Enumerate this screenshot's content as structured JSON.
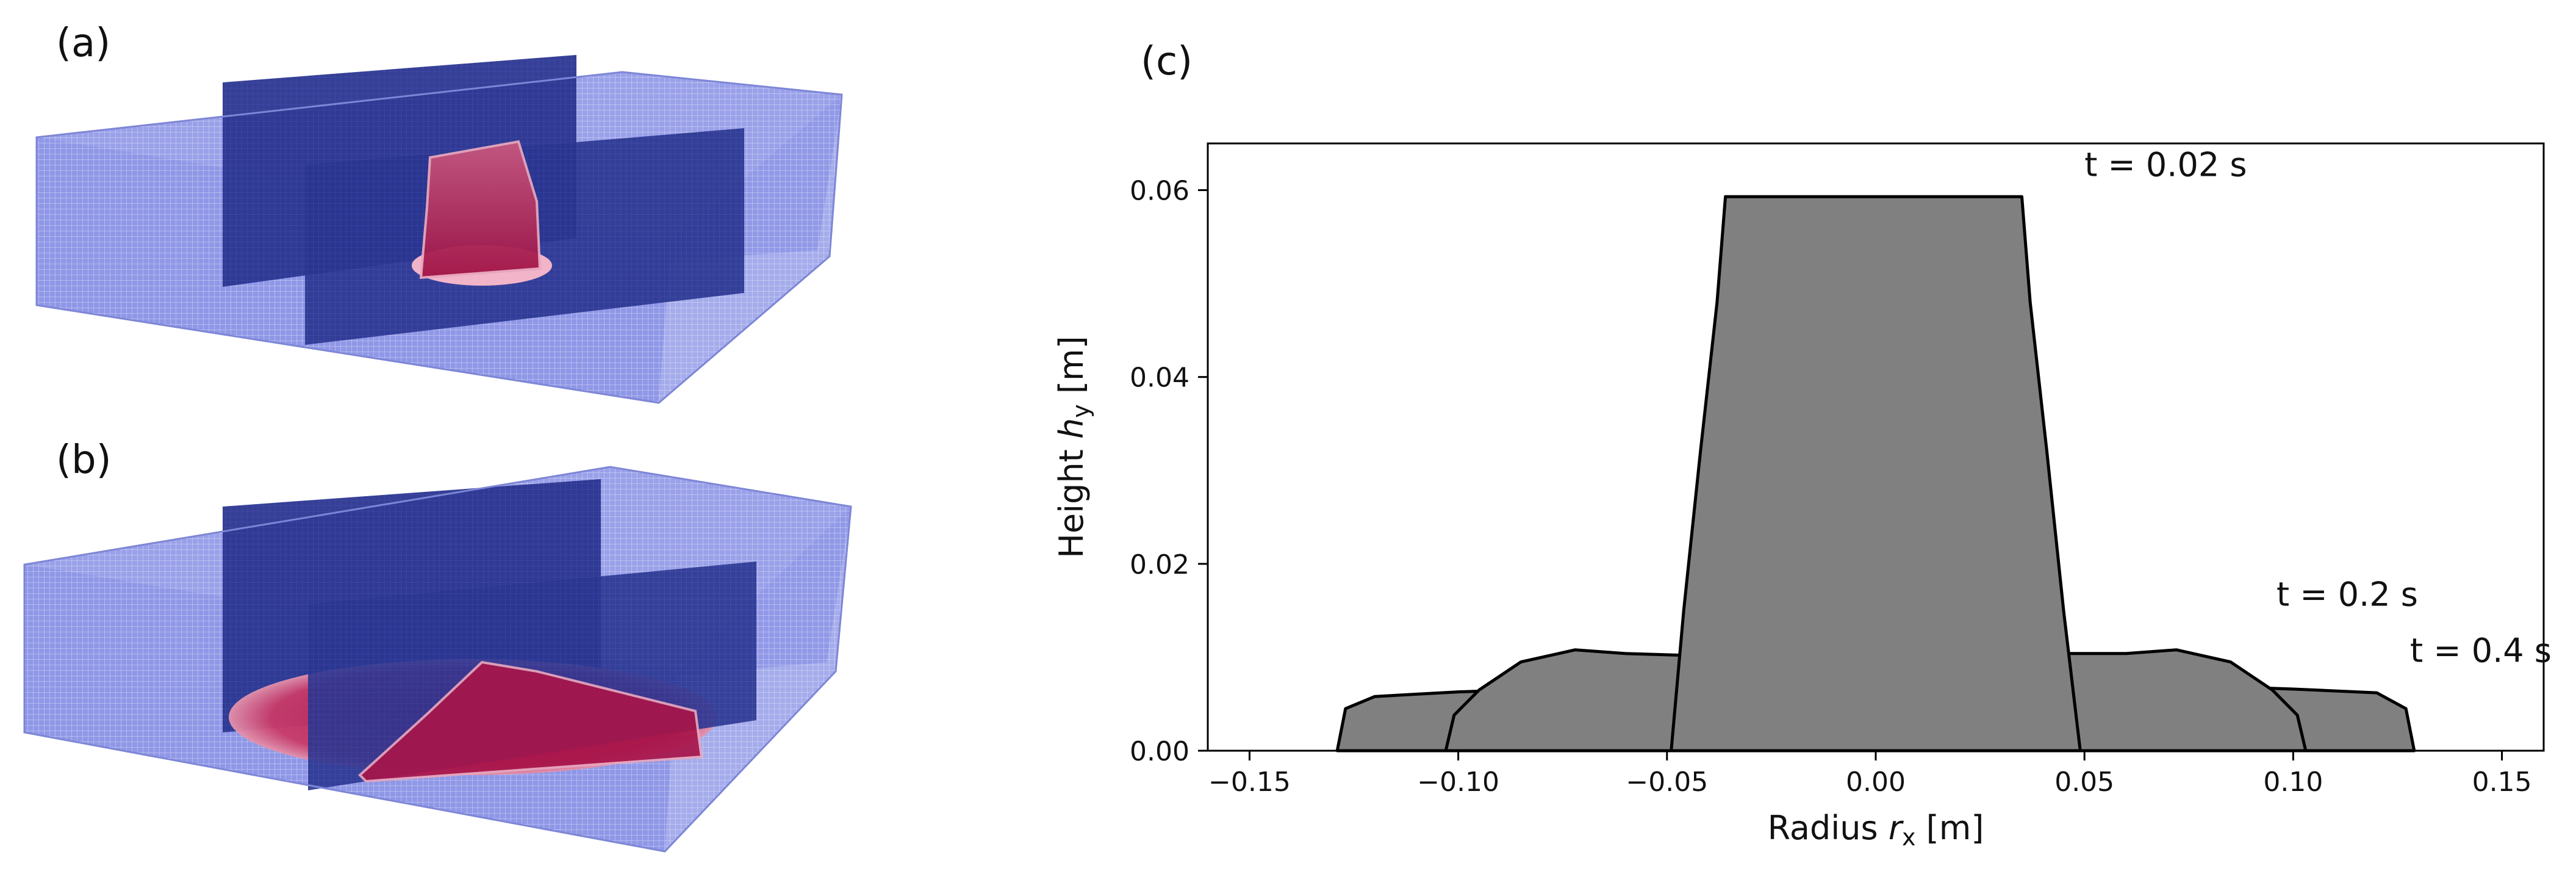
{
  "panels": {
    "a_label": "(a)",
    "b_label": "(b)",
    "c_label": "(c)"
  },
  "colors": {
    "domain_light": "#8f97e6",
    "domain_mid": "#5f69d6",
    "domain_dark": "#2a3590",
    "fluid": "#b02050",
    "fluid_light": "#f2b4c8",
    "profile_fill": "#808080",
    "profile_edge": "#000000"
  },
  "chart_data": {
    "type": "area",
    "title": "",
    "xlabel": "Radius r_x [m]",
    "xlabel_main": "Radius ",
    "xlabel_var": "r",
    "xlabel_sub": "x",
    "xlabel_unit": " [m]",
    "ylabel": "Height h_y [m]",
    "ylabel_main": "Height ",
    "ylabel_var": "h",
    "ylabel_sub": "y",
    "ylabel_unit": " [m]",
    "xlim": [
      -0.16,
      0.16
    ],
    "ylim": [
      0.0,
      0.065
    ],
    "xticks": [
      -0.15,
      -0.1,
      -0.05,
      0.0,
      0.05,
      0.1,
      0.15
    ],
    "xtick_labels": [
      "−0.15",
      "−0.10",
      "−0.05",
      "0.00",
      "0.05",
      "0.10",
      "0.15"
    ],
    "yticks": [
      0.0,
      0.02,
      0.04,
      0.06
    ],
    "ytick_labels": [
      "0.00",
      "0.02",
      "0.04",
      "0.06"
    ],
    "grid": false,
    "series": [
      {
        "name": "t = 0.4 s",
        "label_anchor": [
          0.128,
          0.0095
        ],
        "points": [
          [
            -0.129,
            0.0
          ],
          [
            -0.127,
            0.0045
          ],
          [
            -0.12,
            0.0058
          ],
          [
            -0.1,
            0.0063
          ],
          [
            -0.08,
            0.0066
          ],
          [
            -0.05,
            0.0072
          ],
          [
            -0.03,
            0.0082
          ],
          [
            -0.01,
            0.0095
          ],
          [
            0.0,
            0.0099
          ],
          [
            0.01,
            0.0097
          ],
          [
            0.03,
            0.0087
          ],
          [
            0.05,
            0.0075
          ],
          [
            0.08,
            0.0069
          ],
          [
            0.1,
            0.0066
          ],
          [
            0.12,
            0.0062
          ],
          [
            0.127,
            0.0045
          ],
          [
            0.129,
            0.0
          ]
        ]
      },
      {
        "name": "t = 0.2 s",
        "label_anchor": [
          0.096,
          0.0155
        ],
        "points": [
          [
            -0.103,
            0.0
          ],
          [
            -0.101,
            0.0038
          ],
          [
            -0.095,
            0.0065
          ],
          [
            -0.085,
            0.0095
          ],
          [
            -0.072,
            0.0108
          ],
          [
            -0.06,
            0.0104
          ],
          [
            -0.045,
            0.0102
          ],
          [
            -0.035,
            0.0117
          ],
          [
            -0.02,
            0.015
          ],
          [
            -0.005,
            0.017
          ],
          [
            0.0,
            0.0172
          ],
          [
            0.005,
            0.017
          ],
          [
            0.02,
            0.0155
          ],
          [
            0.035,
            0.0122
          ],
          [
            0.045,
            0.0104
          ],
          [
            0.06,
            0.0104
          ],
          [
            0.072,
            0.0108
          ],
          [
            0.085,
            0.0095
          ],
          [
            0.095,
            0.0065
          ],
          [
            0.101,
            0.0038
          ],
          [
            0.103,
            0.0
          ]
        ]
      },
      {
        "name": "t = 0.02 s",
        "label_anchor": [
          0.05,
          0.0615
        ],
        "points": [
          [
            -0.049,
            0.0
          ],
          [
            -0.046,
            0.015
          ],
          [
            -0.042,
            0.032
          ],
          [
            -0.038,
            0.048
          ],
          [
            -0.036,
            0.0593
          ],
          [
            -0.02,
            0.0593
          ],
          [
            0.0,
            0.0593
          ],
          [
            0.02,
            0.0593
          ],
          [
            0.035,
            0.0593
          ],
          [
            0.037,
            0.048
          ],
          [
            0.041,
            0.032
          ],
          [
            0.045,
            0.015
          ],
          [
            0.049,
            0.0
          ]
        ]
      }
    ]
  }
}
